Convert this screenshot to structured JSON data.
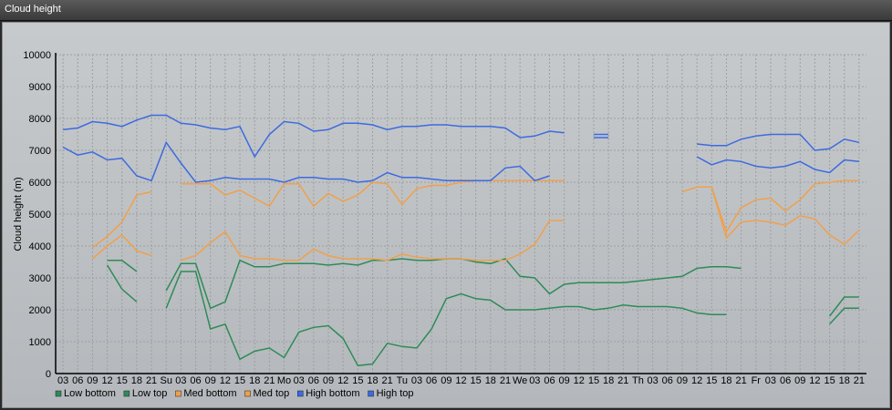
{
  "window": {
    "title": "Cloud height"
  },
  "colors": {
    "green": "#2e8b57",
    "orange": "#f0a04b",
    "blue": "#3c6ae0",
    "grid": "#9aa0a4"
  },
  "chart_data": {
    "type": "line",
    "ylabel": "Cloud height (m)",
    "ylim": [
      0,
      10000
    ],
    "yticks": [
      0,
      1000,
      2000,
      3000,
      4000,
      5000,
      6000,
      7000,
      8000,
      9000,
      10000
    ],
    "grid": true,
    "legend_position": "bottom-left",
    "x_labels": [
      "03",
      "06",
      "09",
      "12",
      "15",
      "18",
      "21",
      "Su",
      "03",
      "06",
      "09",
      "12",
      "15",
      "18",
      "21",
      "Mo",
      "03",
      "06",
      "09",
      "12",
      "15",
      "18",
      "21",
      "Tu",
      "03",
      "06",
      "09",
      "12",
      "15",
      "18",
      "21",
      "We",
      "03",
      "06",
      "09",
      "12",
      "15",
      "18",
      "21",
      "Th",
      "03",
      "06",
      "09",
      "12",
      "15",
      "18",
      "21",
      "Fr",
      "03",
      "06",
      "09",
      "12",
      "15",
      "18",
      "21"
    ],
    "series": [
      {
        "name": "Low bottom",
        "color": "#2e8b57",
        "values": [
          null,
          null,
          null,
          3400,
          2650,
          2250,
          null,
          2050,
          3200,
          3200,
          1400,
          1550,
          450,
          700,
          800,
          500,
          1300,
          1450,
          1500,
          1100,
          250,
          300,
          950,
          850,
          800,
          1400,
          2350,
          2500,
          2350,
          2300,
          2000,
          2000,
          2000,
          2050,
          2100,
          2100,
          2000,
          2050,
          2150,
          2100,
          2100,
          2100,
          2050,
          1900,
          1850,
          1850,
          null,
          null,
          null,
          null,
          null,
          null,
          1550,
          2050,
          2050
        ]
      },
      {
        "name": "Low top",
        "color": "#2e8b57",
        "values": [
          null,
          null,
          null,
          3550,
          3550,
          3200,
          null,
          2600,
          3450,
          3450,
          2050,
          2250,
          3550,
          3350,
          3350,
          3450,
          3450,
          3450,
          3400,
          3450,
          3400,
          3550,
          3550,
          3600,
          3550,
          3550,
          3600,
          3600,
          3500,
          3450,
          3600,
          3050,
          3000,
          2500,
          2800,
          2850,
          2850,
          2850,
          2850,
          2900,
          2950,
          3000,
          3050,
          3300,
          3350,
          3350,
          3300,
          null,
          null,
          null,
          null,
          null,
          1800,
          2400,
          2400
        ]
      },
      {
        "name": "Med bottom",
        "color": "#f0a04b",
        "values": [
          null,
          null,
          3600,
          4000,
          4350,
          3850,
          3700,
          null,
          3550,
          3700,
          4100,
          4450,
          3700,
          3600,
          3600,
          3550,
          3550,
          3900,
          3700,
          3600,
          3600,
          3600,
          3550,
          3750,
          3650,
          3600,
          3600,
          3600,
          3550,
          3550,
          3550,
          3750,
          4050,
          4800,
          4800,
          null,
          null,
          null,
          null,
          null,
          null,
          null,
          null,
          5850,
          5850,
          4250,
          4750,
          4800,
          4750,
          4650,
          4950,
          4850,
          4350,
          4050,
          4500
        ]
      },
      {
        "name": "Med top",
        "color": "#f0a04b",
        "values": [
          null,
          null,
          3950,
          4300,
          4750,
          5600,
          5700,
          null,
          5950,
          5950,
          5950,
          5600,
          5750,
          5500,
          5250,
          5950,
          5950,
          5250,
          5650,
          5400,
          5600,
          6000,
          5950,
          5300,
          5800,
          5900,
          5900,
          6000,
          6050,
          6050,
          6050,
          6050,
          6050,
          6050,
          6050,
          null,
          null,
          null,
          null,
          null,
          null,
          null,
          5700,
          5850,
          5850,
          4450,
          5200,
          5450,
          5500,
          5100,
          5450,
          5950,
          6000,
          6050,
          6050
        ]
      },
      {
        "name": "High bottom",
        "color": "#3c6ae0",
        "values": [
          7100,
          6850,
          6950,
          6700,
          6750,
          6200,
          6050,
          7250,
          6600,
          6000,
          6050,
          6150,
          6100,
          6100,
          6100,
          6000,
          6150,
          6150,
          6100,
          6100,
          6000,
          6050,
          6300,
          6150,
          6150,
          6100,
          6050,
          6050,
          6050,
          6050,
          6450,
          6500,
          6050,
          6200,
          null,
          null,
          7400,
          7400,
          null,
          null,
          null,
          null,
          null,
          6800,
          6550,
          6700,
          6650,
          6500,
          6450,
          6500,
          6650,
          6400,
          6300,
          6700,
          6650
        ]
      },
      {
        "name": "High top",
        "color": "#3c6ae0",
        "values": [
          7650,
          7700,
          7900,
          7850,
          7750,
          7950,
          8100,
          8100,
          7850,
          7800,
          7700,
          7650,
          7750,
          6800,
          7500,
          7900,
          7850,
          7600,
          7650,
          7850,
          7850,
          7800,
          7650,
          7750,
          7750,
          7800,
          7800,
          7750,
          7750,
          7750,
          7700,
          7400,
          7450,
          7600,
          7550,
          null,
          7500,
          7500,
          null,
          null,
          null,
          null,
          null,
          7200,
          7150,
          7150,
          7350,
          7450,
          7500,
          7500,
          7500,
          7000,
          7050,
          7350,
          7250
        ]
      }
    ]
  }
}
